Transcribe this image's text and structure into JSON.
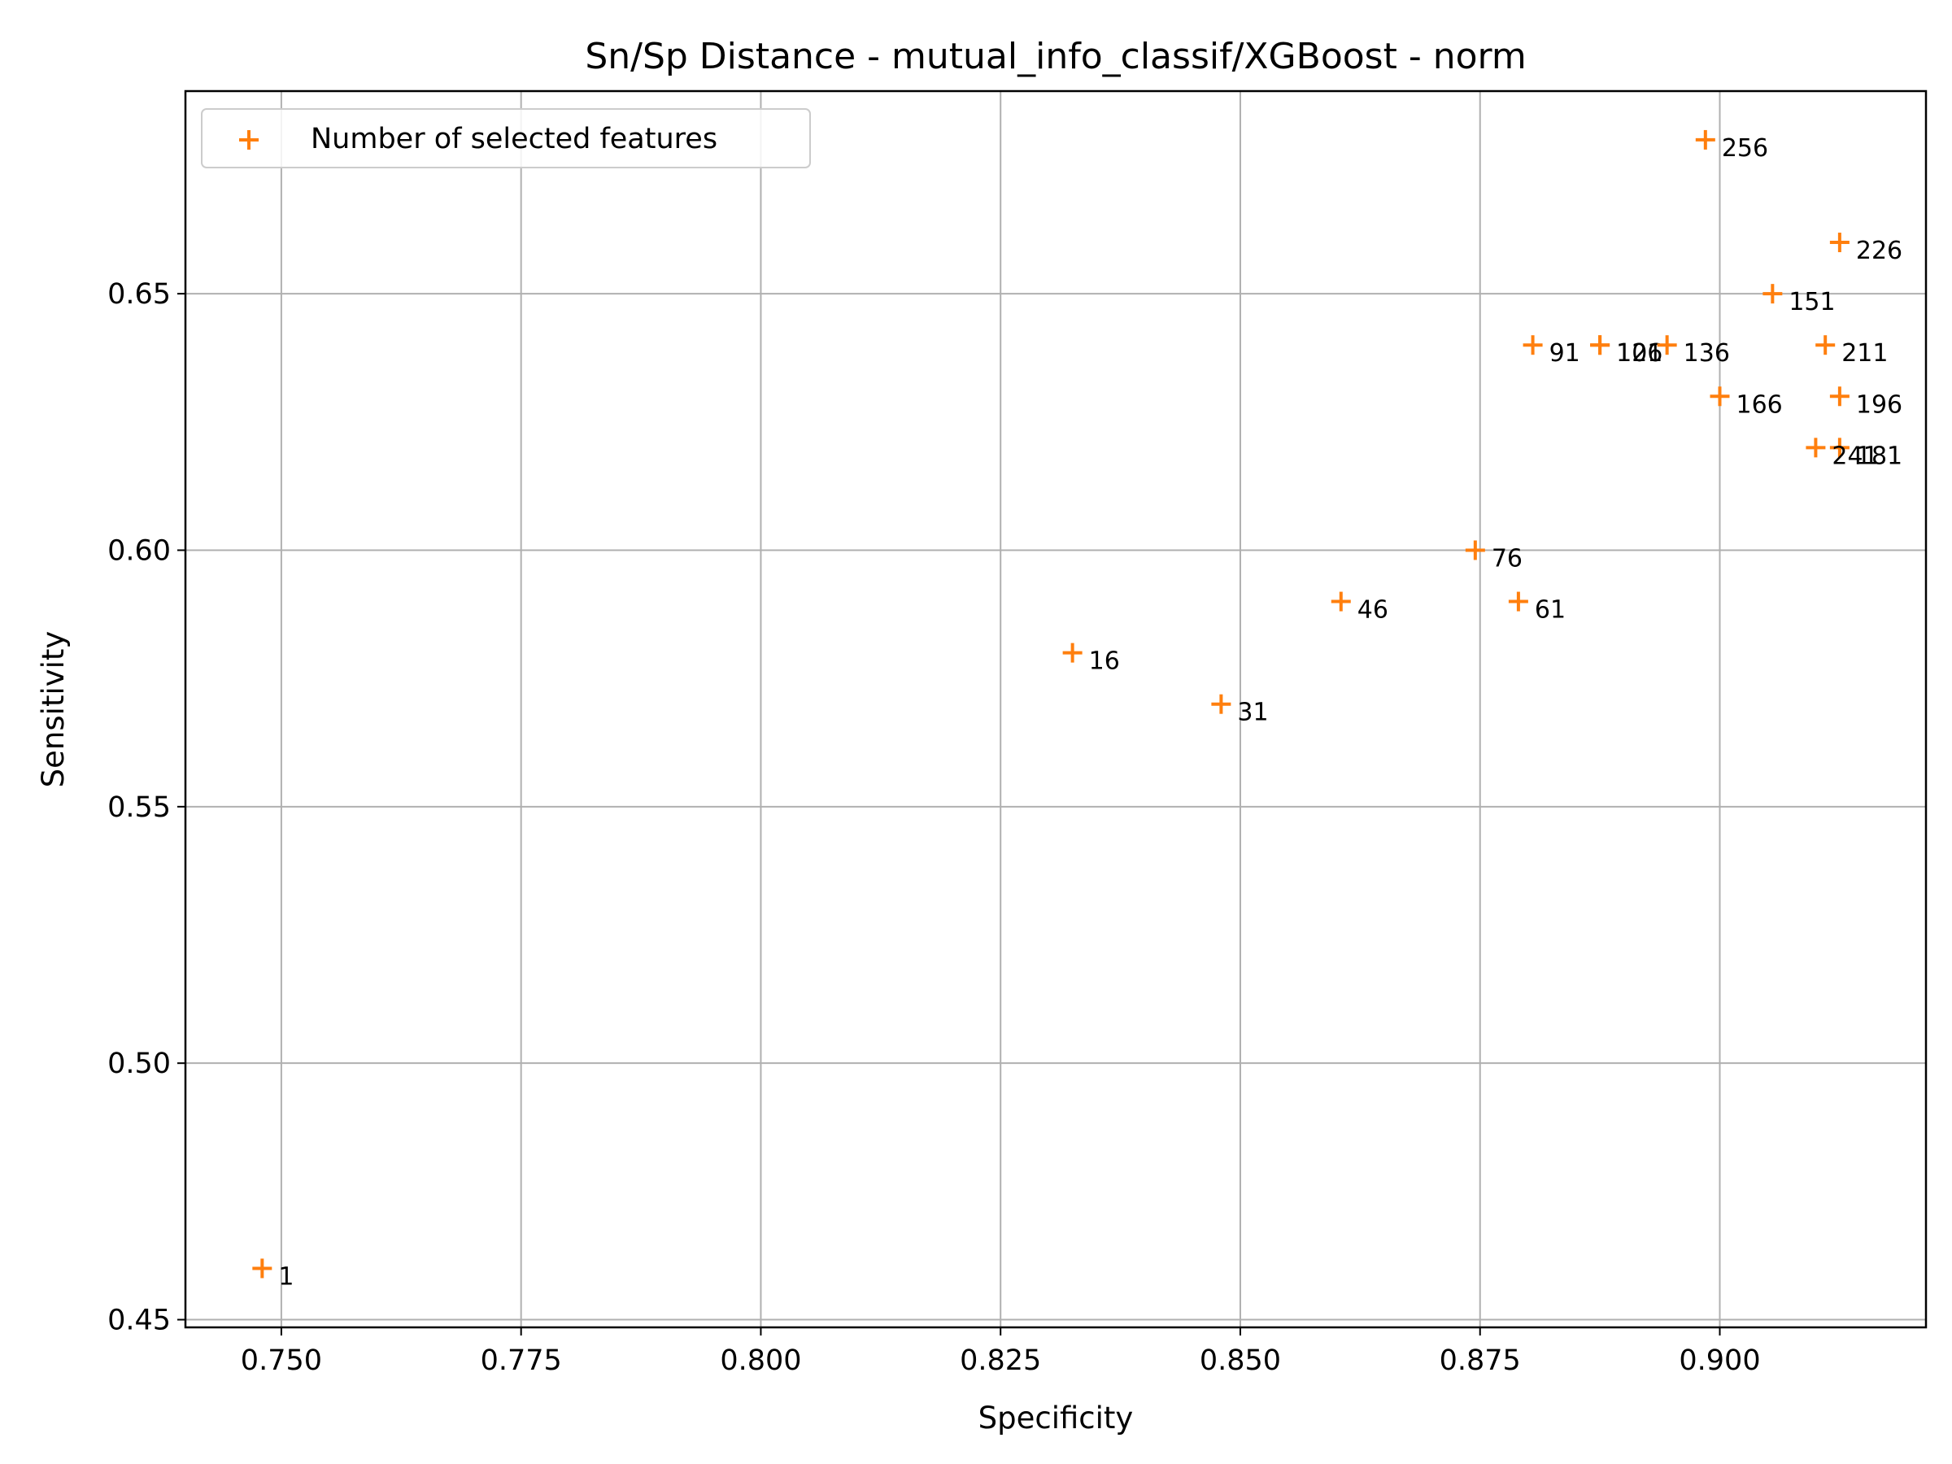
{
  "chart_data": {
    "type": "scatter",
    "title": "Sn/Sp Distance - mutual_info_classif/XGBoost - norm",
    "xlabel": "Specificity",
    "ylabel": "Sensitivity",
    "xlim": [
      0.74,
      0.9215
    ],
    "ylim": [
      0.4485,
      0.6895
    ],
    "xticks": [
      0.75,
      0.775,
      0.8,
      0.825,
      0.85,
      0.875,
      0.9
    ],
    "xtick_labels": [
      "0.750",
      "0.775",
      "0.800",
      "0.825",
      "0.850",
      "0.875",
      "0.900"
    ],
    "yticks": [
      0.45,
      0.5,
      0.55,
      0.6,
      0.65
    ],
    "ytick_labels": [
      "0.45",
      "0.50",
      "0.55",
      "0.60",
      "0.65"
    ],
    "grid": true,
    "legend": {
      "placement": "top-left",
      "entries": [
        "Number of selected features"
      ]
    },
    "marker_color": "#ff7f0e",
    "series": [
      {
        "name": "Number of selected features",
        "points": [
          {
            "x": 0.748,
            "y": 0.46,
            "label": "1"
          },
          {
            "x": 0.8325,
            "y": 0.58,
            "label": "16"
          },
          {
            "x": 0.848,
            "y": 0.57,
            "label": "31"
          },
          {
            "x": 0.8605,
            "y": 0.59,
            "label": "46"
          },
          {
            "x": 0.879,
            "y": 0.59,
            "label": "61"
          },
          {
            "x": 0.8745,
            "y": 0.6,
            "label": "76"
          },
          {
            "x": 0.8805,
            "y": 0.64,
            "label": "91"
          },
          {
            "x": 0.8875,
            "y": 0.64,
            "label": "106"
          },
          {
            "x": 0.8875,
            "y": 0.64,
            "label": "121"
          },
          {
            "x": 0.8945,
            "y": 0.64,
            "label": "136"
          },
          {
            "x": 0.9055,
            "y": 0.65,
            "label": "151"
          },
          {
            "x": 0.9,
            "y": 0.63,
            "label": "166"
          },
          {
            "x": 0.9125,
            "y": 0.62,
            "label": "181"
          },
          {
            "x": 0.9125,
            "y": 0.63,
            "label": "196"
          },
          {
            "x": 0.911,
            "y": 0.64,
            "label": "211"
          },
          {
            "x": 0.9125,
            "y": 0.66,
            "label": "226"
          },
          {
            "x": 0.91,
            "y": 0.62,
            "label": "241"
          },
          {
            "x": 0.8985,
            "y": 0.68,
            "label": "256"
          }
        ]
      }
    ]
  }
}
